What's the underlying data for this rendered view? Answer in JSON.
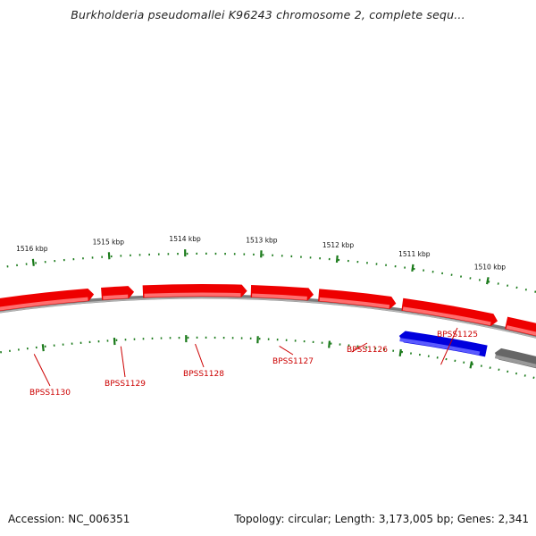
{
  "title": "Burkholderia pseudomallei K96243 chromosome 2, complete sequ...",
  "footer": {
    "accession": "Accession: NC_006351",
    "topology": "Topology: circular; Length: 3,173,005 bp; Genes: 2,341"
  },
  "scale_labels": [
    "1516 kbp",
    "1515 kbp",
    "1514 kbp",
    "1513 kbp",
    "1512 kbp",
    "1511 kbp",
    "1510 kbp"
  ],
  "genes": [
    {
      "name": "BPSS1130",
      "strand": "forward",
      "color": "#ee0000"
    },
    {
      "name": "BPSS1129",
      "strand": "forward",
      "color": "#ee0000"
    },
    {
      "name": "BPSS1128",
      "strand": "forward",
      "color": "#ee0000"
    },
    {
      "name": "BPSS1127",
      "strand": "forward",
      "color": "#ee0000"
    },
    {
      "name": "BPSS1126",
      "strand": "forward",
      "color": "#ee0000"
    },
    {
      "name": "BPSS1125",
      "strand": "forward",
      "color": "#ee0000"
    },
    {
      "name": "",
      "strand": "forward",
      "color": "#ee0000"
    },
    {
      "name": "",
      "strand": "reverse",
      "color": "#0000dd"
    },
    {
      "name": "",
      "strand": "reverse",
      "color": "#666666"
    }
  ],
  "colors": {
    "backbone": "#7a7a7a",
    "tick": "#1a7a1a",
    "gene_forward": "#ee0000",
    "gene_reverse_highlight": "#0000dd",
    "gene_other": "#666666",
    "label": "#cc0000"
  }
}
